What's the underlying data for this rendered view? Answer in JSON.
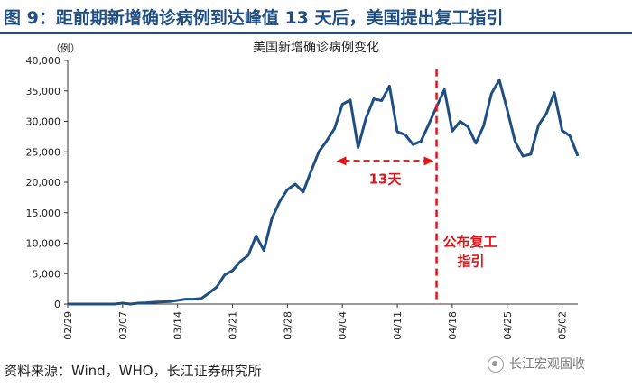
{
  "figure_title": "图 9：距前期新增确诊病例到达峰值 13 天后，美国提出复工指引",
  "source": "资料来源：Wind，WHO，长江证券研究所",
  "watermark": "长江宏观固收",
  "colors": {
    "line": "#1f4f82",
    "annotation": "#e0151b",
    "title": "#1f4f82"
  },
  "chart_data": {
    "type": "line",
    "title": "美国新增确诊病例变化",
    "unit_label": "（例）",
    "ylim": [
      0,
      40000
    ],
    "yticks": [
      0,
      5000,
      10000,
      15000,
      20000,
      25000,
      30000,
      35000,
      40000
    ],
    "ytick_labels": [
      "0",
      "5,000",
      "10,000",
      "15,000",
      "20,000",
      "25,000",
      "30,000",
      "35,000",
      "40,000"
    ],
    "xtick_labels": [
      "02/29",
      "03/07",
      "03/14",
      "03/21",
      "03/28",
      "04/04",
      "04/11",
      "04/18",
      "04/25",
      "05/02"
    ],
    "x": [
      "02/29",
      "03/01",
      "03/02",
      "03/03",
      "03/04",
      "03/05",
      "03/06",
      "03/07",
      "03/08",
      "03/09",
      "03/10",
      "03/11",
      "03/12",
      "03/13",
      "03/14",
      "03/15",
      "03/16",
      "03/17",
      "03/18",
      "03/19",
      "03/20",
      "03/21",
      "03/22",
      "03/23",
      "03/24",
      "03/25",
      "03/26",
      "03/27",
      "03/28",
      "03/29",
      "03/30",
      "03/31",
      "04/01",
      "04/02",
      "04/03",
      "04/04",
      "04/05",
      "04/06",
      "04/07",
      "04/08",
      "04/09",
      "04/10",
      "04/11",
      "04/12",
      "04/13",
      "04/14",
      "04/15",
      "04/16",
      "04/17",
      "04/18",
      "04/19",
      "04/20",
      "04/21",
      "04/22",
      "04/23",
      "04/24",
      "04/25",
      "04/26",
      "04/27",
      "04/28",
      "04/29",
      "04/30",
      "05/01",
      "05/02",
      "05/03",
      "05/04"
    ],
    "series": [
      {
        "values": [
          0,
          0,
          0,
          0,
          0,
          0,
          0,
          150,
          0,
          150,
          200,
          300,
          350,
          400,
          600,
          800,
          800,
          900,
          1800,
          2800,
          4800,
          5500,
          7000,
          8000,
          11200,
          8800,
          14000,
          16800,
          18800,
          19700,
          18400,
          21800,
          25000,
          26800,
          28800,
          32800,
          33500,
          25700,
          30500,
          33700,
          33400,
          35800,
          28300,
          27800,
          26200,
          26700,
          29500,
          32400,
          35200,
          28400,
          30000,
          29100,
          26400,
          29300,
          34600,
          36800,
          31900,
          26700,
          24300,
          24600,
          29400,
          31300,
          34700,
          28500,
          27600,
          24300
        ]
      }
    ],
    "annotations": {
      "interval_label": "13天",
      "event_label_line1": "公布复工",
      "event_label_line2": "指引",
      "event_date": "04/16"
    }
  }
}
